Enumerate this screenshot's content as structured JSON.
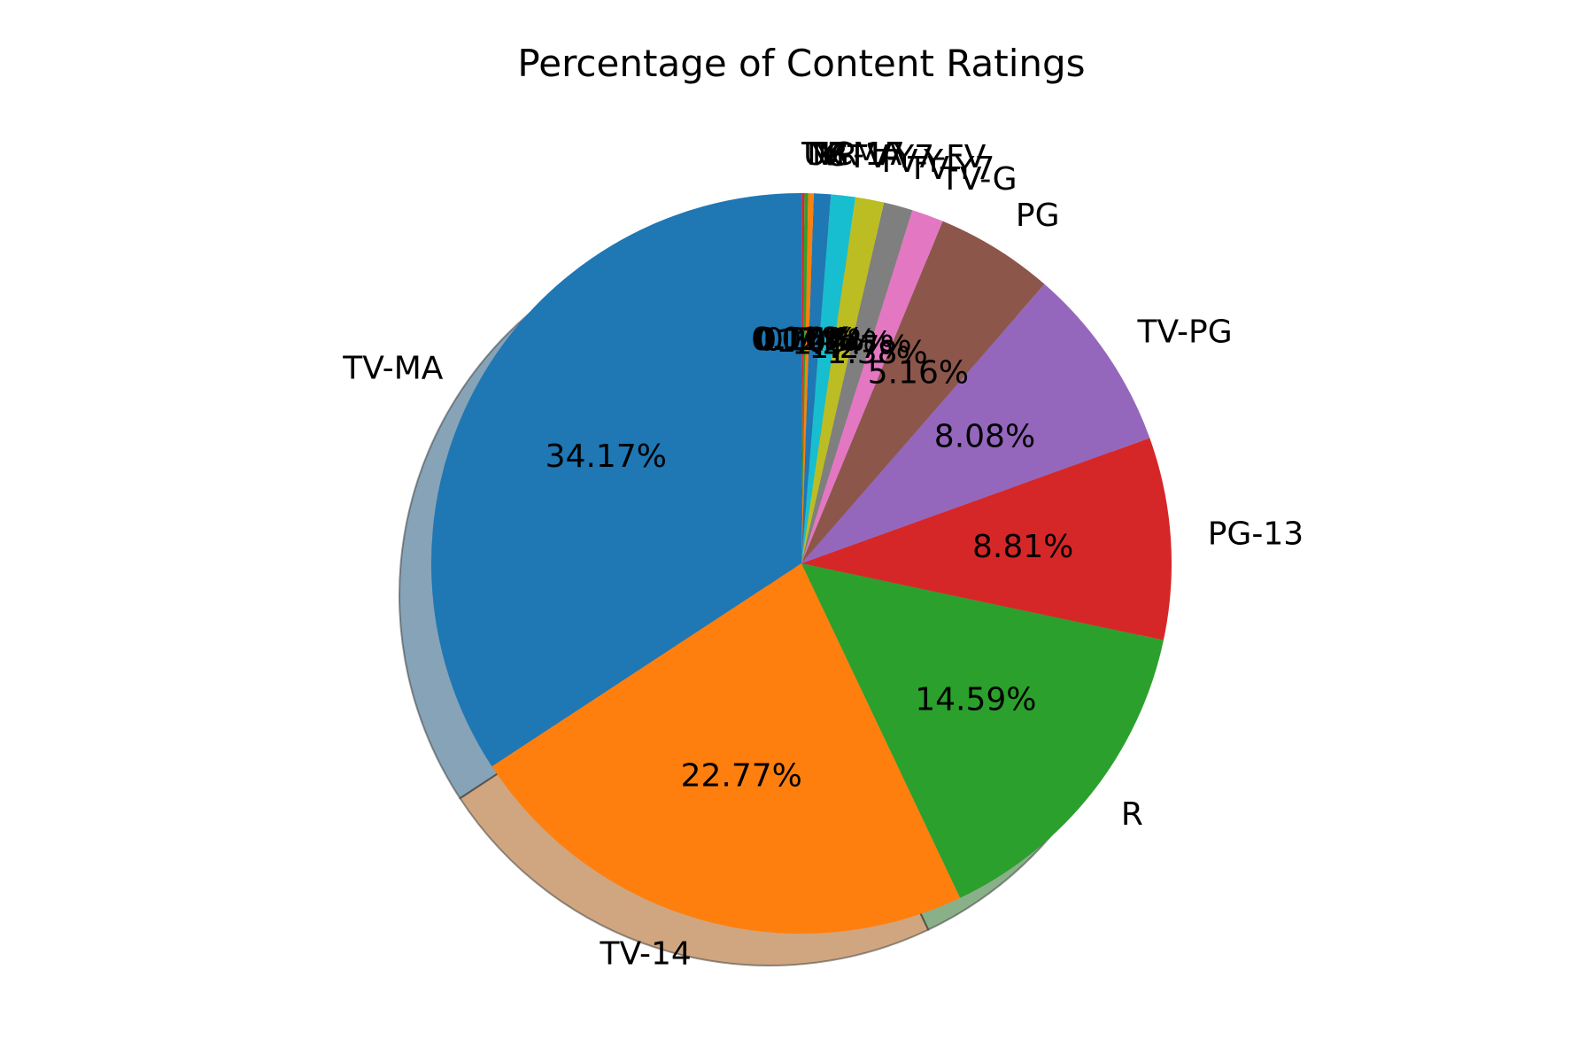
{
  "chart_data": {
    "type": "pie",
    "title": "Percentage of Content Ratings",
    "start_angle_deg": 90,
    "direction": "counterclockwise",
    "shadow": true,
    "slices": [
      {
        "label": "TV-MA",
        "value": 34.17,
        "pct_text": "34.17%",
        "color": "#1f77b4"
      },
      {
        "label": "TV-14",
        "value": 22.77,
        "pct_text": "22.77%",
        "color": "#ff7f0e"
      },
      {
        "label": "R",
        "value": 14.59,
        "pct_text": "14.59%",
        "color": "#2ca02c"
      },
      {
        "label": "PG-13",
        "value": 8.81,
        "pct_text": "8.81%",
        "color": "#d62728"
      },
      {
        "label": "TV-PG",
        "value": 8.08,
        "pct_text": "8.08%",
        "color": "#9467bd"
      },
      {
        "label": "PG",
        "value": 5.16,
        "pct_text": "5.16%",
        "color": "#8c564b"
      },
      {
        "label": "TV-G",
        "value": 1.38,
        "pct_text": "1.38%",
        "color": "#e377c2"
      },
      {
        "label": "TV-Y7",
        "value": 1.27,
        "pct_text": "1.27%",
        "color": "#7f7f7f"
      },
      {
        "label": "TV-Y",
        "value": 1.24,
        "pct_text": "1.24%",
        "color": "#bcbd22"
      },
      {
        "label": "TV-Y7-FV",
        "value": 1.06,
        "pct_text": "1.06%",
        "color": "#17becf"
      },
      {
        "label": "G",
        "value": 0.74,
        "pct_text": "0.74%",
        "color": "#1f77b4"
      },
      {
        "label": "NR",
        "value": 0.24,
        "pct_text": "0.24%",
        "color": "#ff7f0e"
      },
      {
        "label": "NC-17",
        "value": 0.16,
        "pct_text": "0.16%",
        "color": "#2ca02c"
      },
      {
        "label": "UR",
        "value": 0.11,
        "pct_text": "0.11%",
        "color": "#d62728"
      },
      {
        "label": "TV-MA",
        "value": 0.02,
        "pct_text": "0.02%",
        "color": "#9467bd"
      }
    ]
  }
}
